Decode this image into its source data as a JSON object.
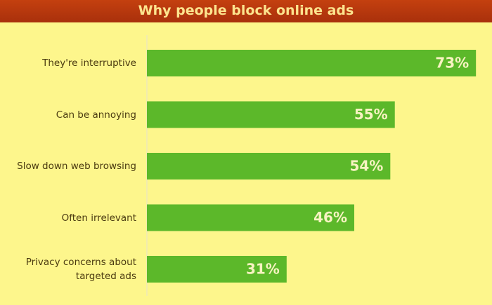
{
  "chart_data": {
    "type": "bar",
    "orientation": "horizontal",
    "title": "Why people block online ads",
    "categories": [
      "They're interruptive",
      "Can be annoying",
      "Slow down web browsing",
      "Often irrelevant",
      "Privacy concerns about targeted ads"
    ],
    "values": [
      73,
      55,
      54,
      46,
      31
    ],
    "value_labels": [
      "73%",
      "55%",
      "54%",
      "46%",
      "31%"
    ],
    "color": "#5cb82a",
    "xlim": [
      0,
      75
    ]
  }
}
